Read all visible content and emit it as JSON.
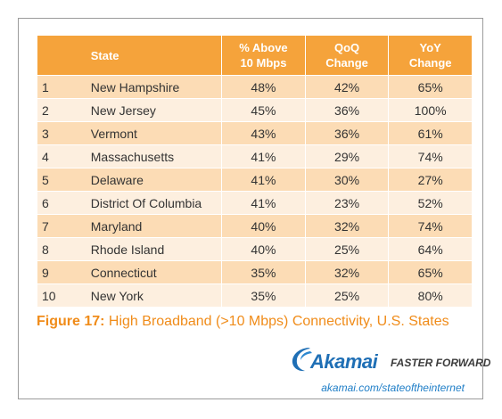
{
  "table": {
    "headers": {
      "state": "State",
      "above_10": [
        "% Above",
        "10 Mbps"
      ],
      "qoq": [
        "QoQ",
        "Change"
      ],
      "yoy": [
        "YoY",
        "Change"
      ]
    },
    "rows": [
      {
        "rank": "1",
        "state": "New Hampshire",
        "above_10": "48%",
        "qoq": "42%",
        "yoy": "65%"
      },
      {
        "rank": "2",
        "state": "New Jersey",
        "above_10": "45%",
        "qoq": "36%",
        "yoy": "100%"
      },
      {
        "rank": "3",
        "state": "Vermont",
        "above_10": "43%",
        "qoq": "36%",
        "yoy": "61%"
      },
      {
        "rank": "4",
        "state": "Massachusetts",
        "above_10": "41%",
        "qoq": "29%",
        "yoy": "74%"
      },
      {
        "rank": "5",
        "state": "Delaware",
        "above_10": "41%",
        "qoq": "30%",
        "yoy": "27%"
      },
      {
        "rank": "6",
        "state": "District Of Columbia",
        "above_10": "41%",
        "qoq": "23%",
        "yoy": "52%"
      },
      {
        "rank": "7",
        "state": "Maryland",
        "above_10": "40%",
        "qoq": "32%",
        "yoy": "74%"
      },
      {
        "rank": "8",
        "state": "Rhode Island",
        "above_10": "40%",
        "qoq": "25%",
        "yoy": "64%"
      },
      {
        "rank": "9",
        "state": "Connecticut",
        "above_10": "35%",
        "qoq": "32%",
        "yoy": "65%"
      },
      {
        "rank": "10",
        "state": "New York",
        "above_10": "35%",
        "qoq": "25%",
        "yoy": "80%"
      }
    ]
  },
  "caption": {
    "label": "Figure 17:",
    "text": " High Broadband (>10 Mbps) Connectivity, U.S. States"
  },
  "brand": {
    "name": "Akamai",
    "tagline": "FASTER FORWARD",
    "url": "akamai.com/stateoftheinternet"
  },
  "colors": {
    "header_bg": "#f5a33b",
    "row_odd": "#fcdcb5",
    "row_even": "#fdefdf",
    "caption": "#f08c1a",
    "brand_blue": "#1f6fb5"
  }
}
